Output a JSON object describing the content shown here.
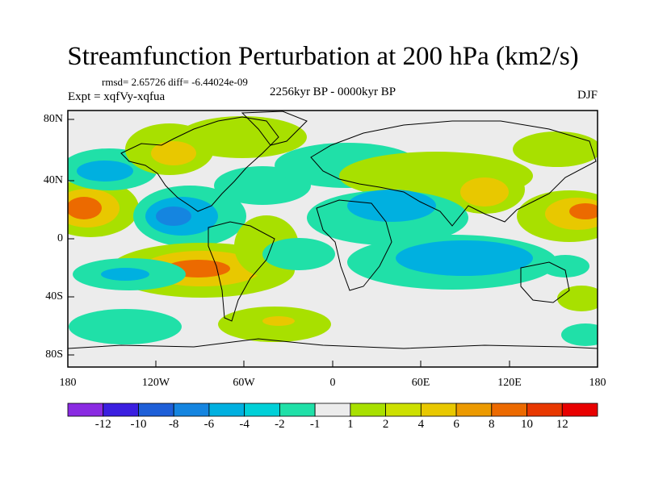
{
  "title": "Streamfunction Perturbation at 200 hPa (km2/s)",
  "stats": "rmsd= 2.65726 diff= -6.44024e-09",
  "experiment": "Expt = xqfVy-xqfua",
  "period": "2256kyr BP - 0000kyr BP",
  "season": "DJF",
  "lat_ticks": [
    "80N",
    "40N",
    "0",
    "40S",
    "80S"
  ],
  "lon_ticks": [
    "180",
    "120W",
    "60W",
    "0",
    "60E",
    "120E",
    "180"
  ],
  "colorbar": {
    "labels": [
      "-12",
      "-10",
      "-8",
      "-6",
      "-4",
      "-2",
      "-1",
      "1",
      "2",
      "4",
      "6",
      "8",
      "10",
      "12"
    ],
    "colors": [
      "#8a2be2",
      "#3b1fe0",
      "#1e5fd8",
      "#1585e0",
      "#00b0e0",
      "#00d0d8",
      "#20e0a8",
      "#ececec",
      "#a8e000",
      "#cde000",
      "#e8c800",
      "#ec9a00",
      "#ec6a00",
      "#e83800",
      "#e80000"
    ]
  },
  "colors": {
    "background_field": "#ececec",
    "positive_weak": "#a8e000",
    "positive_mid": "#e8c800",
    "positive_strong": "#ec6a00",
    "negative_weak": "#20e0a8",
    "negative_mid": "#00b0e0",
    "negative_strong": "#1585e0"
  }
}
